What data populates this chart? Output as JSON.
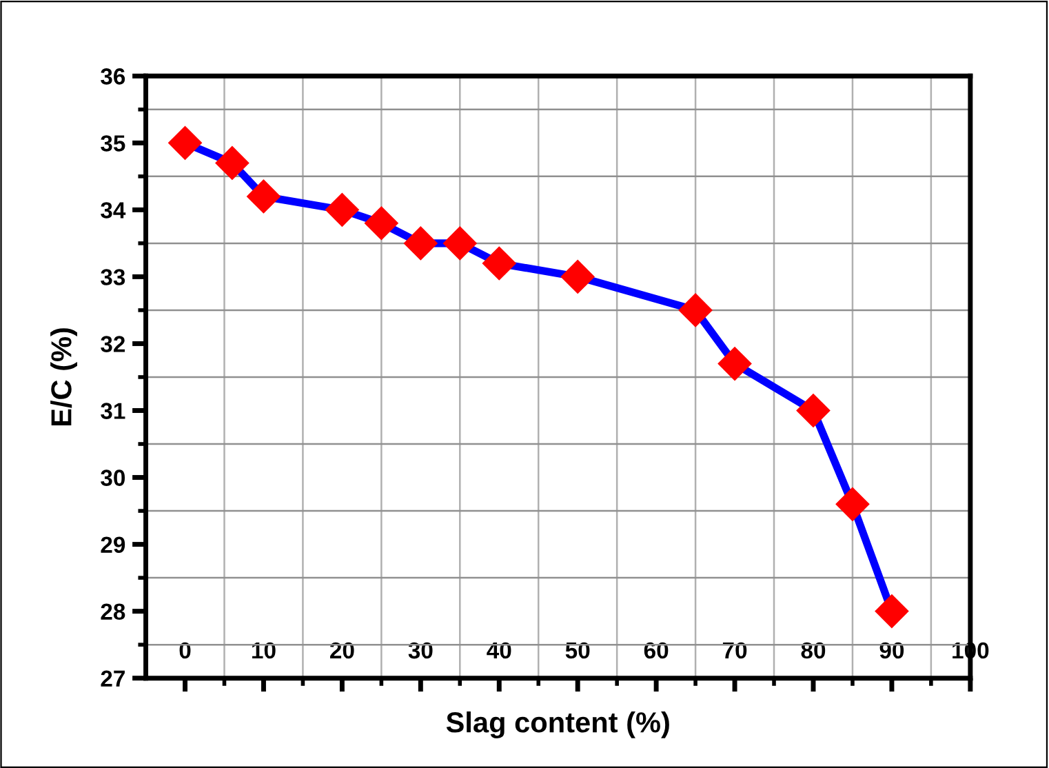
{
  "chart_data": {
    "type": "line",
    "xlabel": "Slag content (%)",
    "ylabel": "E/C (%)",
    "x": [
      0,
      6,
      10,
      20,
      25,
      30,
      35,
      40,
      50,
      65,
      70,
      80,
      85,
      90
    ],
    "series": [
      {
        "color": "#0000ff",
        "colors": [
          "#ff0000",
          "#ff0000",
          "#ff0000",
          "#ff0000",
          "#ff0000",
          "#ff0000",
          "#ff0000",
          "#ff0000",
          "#ff0000",
          "#ff0000",
          "#ff0000",
          "#ff0000",
          "#ff0000",
          "#ff0000"
        ],
        "values": [
          35,
          34.7,
          34.2,
          34,
          33.8,
          33.5,
          33.5,
          33.2,
          33,
          32.5,
          31.7,
          31,
          29.6,
          28
        ]
      }
    ],
    "marker": "diamond",
    "line_style": "solid",
    "xlim": [
      -5,
      100
    ],
    "xticks": [
      0,
      10,
      20,
      30,
      40,
      50,
      60,
      70,
      80,
      90,
      100,
      {
        "value": 5,
        "label": null
      },
      {
        "value": 15,
        "label": null
      },
      {
        "value": 25,
        "label": null
      },
      {
        "value": 35,
        "label": null
      },
      {
        "value": 45,
        "label": null
      },
      {
        "value": 55,
        "label": null
      },
      {
        "value": 65,
        "label": null
      },
      {
        "value": 75,
        "label": null
      },
      {
        "value": 85,
        "label": null
      },
      {
        "value": 95,
        "label": null
      }
    ],
    "ylim": [
      27,
      36
    ],
    "yticks": [
      27,
      28,
      29,
      30,
      31,
      32,
      33,
      34,
      35,
      36,
      {
        "value": 27.5,
        "label": null
      },
      {
        "value": 28.5,
        "label": null
      },
      {
        "value": 29.5,
        "label": null
      },
      {
        "value": 30.5,
        "label": null
      },
      {
        "value": 31.5,
        "label": null
      },
      {
        "value": 32.5,
        "label": null
      },
      {
        "value": 33.5,
        "label": null
      },
      {
        "value": 34.5,
        "label": null
      },
      {
        "value": 35.5,
        "label": null
      }
    ],
    "grid": true
  }
}
